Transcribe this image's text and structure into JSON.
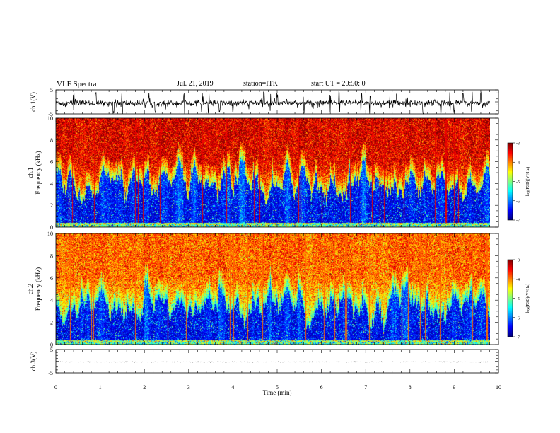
{
  "header": {
    "title": "VLF Spectra",
    "date": "Jul. 21, 2019",
    "station": "station=ITK",
    "start": "start UT = 20:50: 0"
  },
  "chart_data": [
    {
      "type": "line",
      "name": "waveform-ch1",
      "ylabel": "ch.1(V)",
      "ylim": [
        -5,
        5
      ],
      "yticks": [
        "5",
        "-5"
      ],
      "x_range": [
        0,
        9.8
      ],
      "baseline": -0.5,
      "noise_amplitude": 0.6,
      "spike_times": [
        0.4,
        0.9,
        1.3,
        1.5,
        2.1,
        2.25,
        2.9,
        3.3,
        3.45,
        3.7,
        4.0,
        4.7,
        4.85,
        5.0,
        5.6,
        6.2,
        6.4,
        6.9,
        7.1,
        7.7,
        8.3,
        8.7,
        8.9,
        9.0,
        9.2,
        9.4,
        9.6
      ]
    },
    {
      "type": "heatmap",
      "name": "spectrogram-ch1",
      "ylabel_top": "ch.1",
      "ylabel": "Frequency (kHz)",
      "ylim": [
        0,
        10
      ],
      "yticks": [
        "0",
        "2",
        "4",
        "6",
        "8",
        "10"
      ],
      "x_range": [
        0,
        9.8
      ],
      "colorbar": {
        "label": "log(PSD)(V²/Hz)",
        "range": [
          -7,
          -3
        ],
        "ticks": [
          "-3",
          "-4",
          "-5",
          "-6",
          "-7"
        ]
      },
      "upper_level": -3.4,
      "dark_band_top_khz": 4.0
    },
    {
      "type": "heatmap",
      "name": "spectrogram-ch2",
      "ylabel_top": "ch.2",
      "ylabel": "Frequency (kHz)",
      "ylim": [
        0,
        10
      ],
      "yticks": [
        "0",
        "2",
        "4",
        "6",
        "8",
        "10"
      ],
      "x_range": [
        0,
        9.8
      ],
      "colorbar": {
        "label": "log(PSD)(V²/Hz)",
        "range": [
          -7,
          -3
        ],
        "ticks": [
          "-3",
          "-4",
          "-5",
          "-6",
          "-7"
        ]
      },
      "upper_level": -3.9,
      "dark_band_top_khz": 3.5
    },
    {
      "type": "line",
      "name": "waveform-ch3",
      "ylabel": "ch.3(V)",
      "ylim": [
        -5,
        5
      ],
      "yticks": [
        "5",
        "-5"
      ],
      "x_range": [
        0,
        9.8
      ],
      "baseline": -0.3,
      "noise_amplitude": 0.05
    }
  ],
  "x_axis": {
    "label": "Time (min)",
    "xlim": [
      0,
      10
    ],
    "ticks": [
      "0",
      "1",
      "2",
      "3",
      "4",
      "5",
      "6",
      "7",
      "8",
      "9",
      "10"
    ]
  }
}
